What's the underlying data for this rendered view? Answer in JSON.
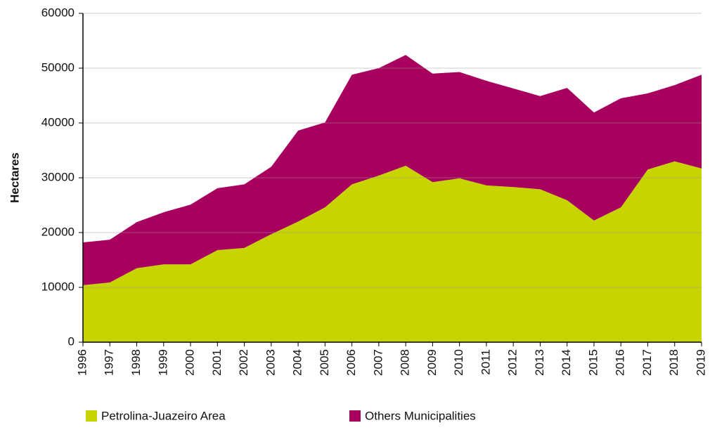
{
  "chart_data": {
    "type": "stacked_area",
    "ylabel": "Hectares",
    "categories": [
      "1996",
      "1997",
      "1998",
      "1999",
      "2000",
      "2001",
      "2002",
      "2003",
      "2004",
      "2005",
      "2006",
      "2007",
      "2008",
      "2009",
      "2010",
      "2011",
      "2012",
      "2013",
      "2014",
      "2015",
      "2016",
      "2017",
      "2018",
      "2019"
    ],
    "series": [
      {
        "name": "Petrolina-Juazeiro Area",
        "color": "#c8d400",
        "values": [
          10400,
          10900,
          13500,
          14200,
          14200,
          16800,
          17200,
          19700,
          22000,
          24600,
          28800,
          30400,
          32200,
          29200,
          29900,
          28600,
          28300,
          27900,
          25900,
          22200,
          24600,
          31500,
          33000,
          31700
        ]
      },
      {
        "name": "Others Municipalities",
        "color": "#a8005e",
        "values": [
          7800,
          7800,
          8400,
          9500,
          10900,
          11300,
          11600,
          12300,
          16600,
          15500,
          20000,
          19600,
          20200,
          19800,
          19400,
          19100,
          18000,
          17000,
          20500,
          19700,
          19900,
          13900,
          13900,
          17100
        ]
      }
    ],
    "ylim": [
      0,
      60000
    ],
    "yticks": [
      0,
      10000,
      20000,
      30000,
      40000,
      50000,
      60000
    ],
    "grid": true
  }
}
